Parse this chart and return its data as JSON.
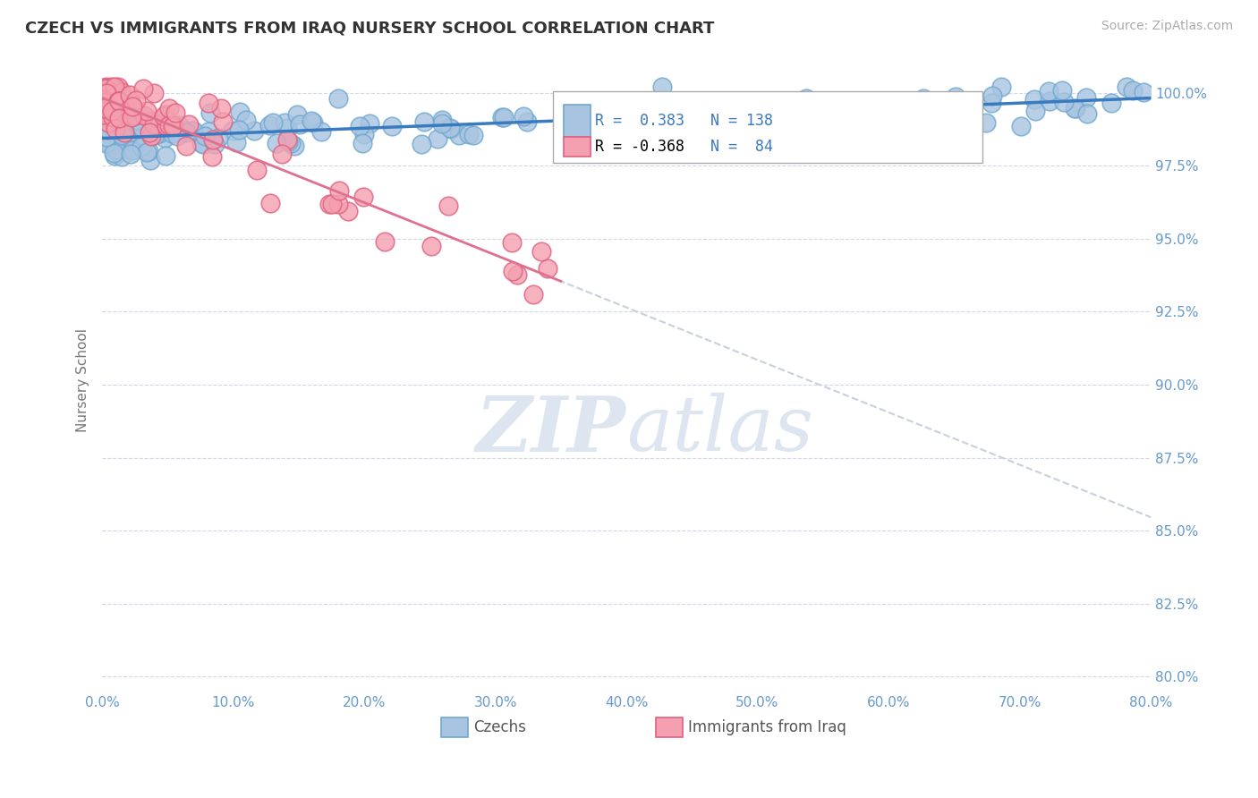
{
  "title": "CZECH VS IMMIGRANTS FROM IRAQ NURSERY SCHOOL CORRELATION CHART",
  "source": "Source: ZipAtlas.com",
  "xlabel_czechs": "Czechs",
  "xlabel_iraq": "Immigrants from Iraq",
  "ylabel": "Nursery School",
  "R_czechs": 0.383,
  "N_czechs": 138,
  "R_iraq": -0.368,
  "N_iraq": 84,
  "xlim": [
    0.0,
    0.8
  ],
  "ylim": [
    0.795,
    1.008
  ],
  "yticks": [
    0.8,
    0.825,
    0.85,
    0.875,
    0.9,
    0.925,
    0.95,
    0.975,
    1.0
  ],
  "ytick_labels": [
    "80.0%",
    "82.5%",
    "85.0%",
    "87.5%",
    "90.0%",
    "92.5%",
    "95.0%",
    "97.5%",
    "100.0%"
  ],
  "xticks": [
    0.0,
    0.1,
    0.2,
    0.3,
    0.4,
    0.5,
    0.6,
    0.7,
    0.8
  ],
  "xtick_labels": [
    "0.0%",
    "10.0%",
    "20.0%",
    "30.0%",
    "40.0%",
    "50.0%",
    "60.0%",
    "70.0%",
    "80.0%"
  ],
  "color_czechs": "#a8c4e0",
  "color_czechs_edge": "#6fa8d0",
  "color_iraq": "#f4a0b0",
  "color_iraq_edge": "#e06080",
  "color_trend_czechs": "#3a7abf",
  "color_trend_iraq": "#e07090",
  "color_trend_dashed": "#c8d0dc",
  "grid_color": "#d0d8e8",
  "title_color": "#333333",
  "axis_label_color": "#777777",
  "tick_color": "#6699cc",
  "source_color": "#aaaaaa",
  "watermark_color": "#dde5f0",
  "legend_box_color_czechs": "#a8c4e0",
  "legend_box_color_iraq": "#f4a0b0"
}
